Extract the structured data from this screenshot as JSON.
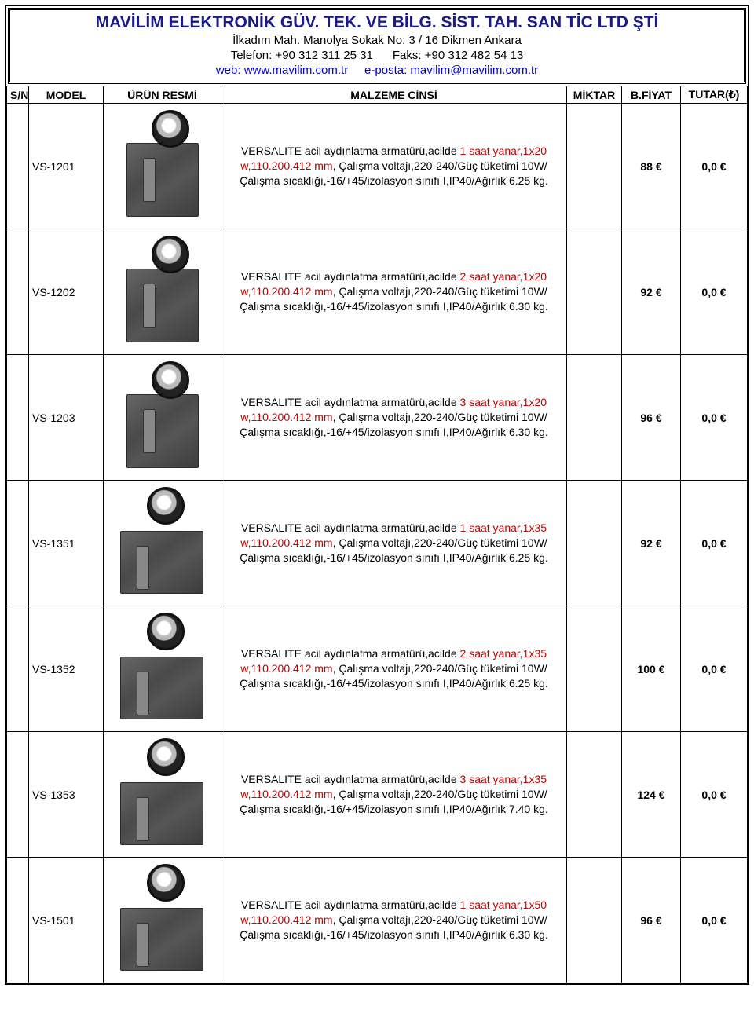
{
  "header": {
    "company": "MAVİLİM ELEKTRONİK GÜV. TEK. VE BİLG. SİST. TAH. SAN TİC LTD ŞTİ",
    "address": "İlkadım Mah. Manolya Sokak No: 3 / 16 Dikmen Ankara",
    "tel_label": "Telefon: ",
    "tel": "+90 312 311 25 31",
    "fax_label": "Faks: ",
    "fax": "+90 312 482 54 13",
    "web_label": "web: ",
    "web": "www.mavilim.com.tr",
    "email_label": "e-posta: ",
    "email": "mavilim@mavilim.com.tr"
  },
  "columns": {
    "sn": "S/N",
    "model": "MODEL",
    "image": "ÜRÜN RESMİ",
    "desc": "MALZEME CİNSİ",
    "qty": "MİKTAR",
    "price": "B.FİYAT",
    "total": "TUTAR(₺)"
  },
  "rows": [
    {
      "model": "VS-1201",
      "desc_pre": "VERSALITE acil aydınlatma armatürü,acilde",
      "desc_red": " 1 saat yanar,1x20 w,110.200.412 mm",
      "desc_post": ", Çalışma voltajı,220-240/Güç tüketimi 10W/Çalışma sıcaklığı,-16/+45/izolasyon sınıfı I,IP40/Ağırlık 6.25 kg.",
      "price": "88 €",
      "total": "0,0 €",
      "wide": false
    },
    {
      "model": "VS-1202",
      "desc_pre": "VERSALITE acil aydınlatma armatürü,acilde",
      "desc_red": " 2 saat yanar,1x20 w,110.200.412 mm",
      "desc_post": ", Çalışma voltajı,220-240/Güç tüketimi 10W/Çalışma sıcaklığı,-16/+45/izolasyon sınıfı I,IP40/Ağırlık 6.30 kg.",
      "price": "92 €",
      "total": "0,0 €",
      "wide": false
    },
    {
      "model": "VS-1203",
      "desc_pre": "VERSALITE acil aydınlatma armatürü,acilde",
      "desc_red": " 3 saat yanar,1x20 w,110.200.412 mm",
      "desc_post": ", Çalışma voltajı,220-240/Güç tüketimi 10W/Çalışma sıcaklığı,-16/+45/izolasyon sınıfı I,IP40/Ağırlık 6.30 kg.",
      "price": "96 €",
      "total": "0,0 €",
      "wide": false
    },
    {
      "model": "VS-1351",
      "desc_pre": "VERSALITE acil aydınlatma armatürü,acilde",
      "desc_red": " 1 saat yanar,1x35 w,110.200.412 mm",
      "desc_post": ", Çalışma voltajı,220-240/Güç tüketimi 10W/Çalışma sıcaklığı,-16/+45/izolasyon sınıfı I,IP40/Ağırlık 6.25 kg.",
      "price": "92 €",
      "total": "0,0 €",
      "wide": true
    },
    {
      "model": "VS-1352",
      "desc_pre": "VERSALITE acil aydınlatma armatürü,acilde",
      "desc_red": " 2 saat yanar,1x35 w,110.200.412 mm",
      "desc_post": ", Çalışma voltajı,220-240/Güç tüketimi 10W/Çalışma sıcaklığı,-16/+45/izolasyon sınıfı I,IP40/Ağırlık 6.25 kg.",
      "price": "100 €",
      "total": "0,0 €",
      "wide": true
    },
    {
      "model": "VS-1353",
      "desc_pre": "VERSALITE acil aydınlatma armatürü,acilde",
      "desc_red": " 3 saat yanar,1x35 w,110.200.412 mm",
      "desc_post": ", Çalışma voltajı,220-240/Güç tüketimi 10W/Çalışma sıcaklığı,-16/+45/izolasyon sınıfı I,IP40/Ağırlık 7.40 kg.",
      "price": "124 €",
      "total": "0,0 €",
      "wide": true
    },
    {
      "model": "VS-1501",
      "desc_pre": "VERSALITE acil aydınlatma armatürü,acilde",
      "desc_red": " 1 saat yanar,1x50 w,110.200.412 mm",
      "desc_post": ", Çalışma voltajı,220-240/Güç tüketimi 10W/Çalışma sıcaklığı,-16/+45/izolasyon sınıfı I,IP40/Ağırlık 6.30 kg.",
      "price": "96 €",
      "total": "0,0 €",
      "wide": true
    }
  ]
}
